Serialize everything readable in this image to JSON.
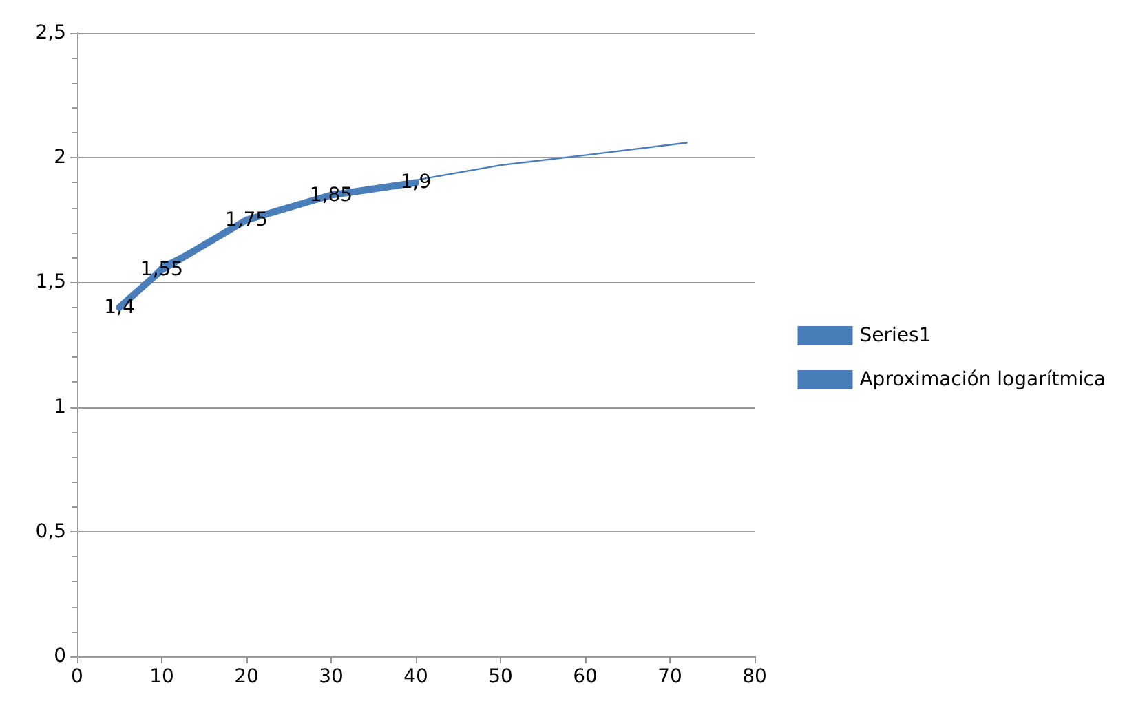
{
  "chart_data": {
    "type": "line",
    "xlim": [
      0,
      80
    ],
    "xticks": [
      0,
      10,
      20,
      30,
      40,
      50,
      60,
      70,
      80
    ],
    "ylim": [
      0,
      2.5
    ],
    "yticks": [
      0,
      {
        "value": 0.5,
        "label": "0,5"
      },
      1,
      {
        "value": 1.5,
        "label": "1,5"
      },
      2,
      {
        "value": 2.5,
        "label": "2,5"
      }
    ],
    "grid": "y",
    "legend": "right",
    "marker": "none",
    "series": [
      {
        "name": "Series1",
        "color": "#4a7ebb",
        "x": [
          5,
          10,
          20,
          30,
          40
        ],
        "values": [
          1.4,
          1.55,
          1.75,
          1.85,
          1.9
        ],
        "value_labels": [
          "1,4",
          "1,55",
          "1,75",
          "1,85",
          "1,9"
        ]
      },
      {
        "name": "Aproximación logarítmica",
        "color": "#4a7ebb",
        "x": [
          5,
          10,
          20,
          30,
          40,
          50,
          60,
          72
        ],
        "values": [
          1.39,
          1.57,
          1.74,
          1.84,
          1.91,
          1.97,
          2.01,
          2.06
        ]
      }
    ]
  }
}
